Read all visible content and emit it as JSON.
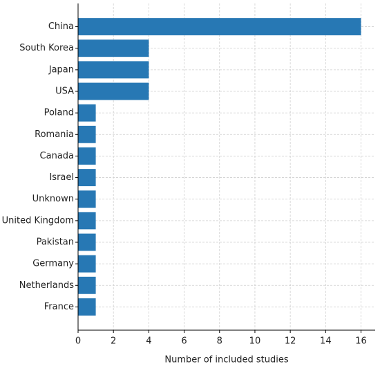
{
  "chart_data": {
    "type": "barh",
    "x_label": "Number of included studies",
    "categories": [
      "China",
      "South Korea",
      "Japan",
      "USA",
      "Poland",
      "Romania",
      "Canada",
      "Israel",
      "Unknown",
      "United Kingdom",
      "Pakistan",
      "Germany",
      "Netherlands",
      "France"
    ],
    "values": [
      16,
      4,
      4,
      4,
      1,
      1,
      1,
      1,
      1,
      1,
      1,
      1,
      1,
      1
    ],
    "color": "#2778b4",
    "xlim": [
      0,
      16.8
    ],
    "xticks": [
      0,
      2,
      4,
      6,
      8,
      10,
      12,
      14,
      16
    ],
    "grid": true
  }
}
